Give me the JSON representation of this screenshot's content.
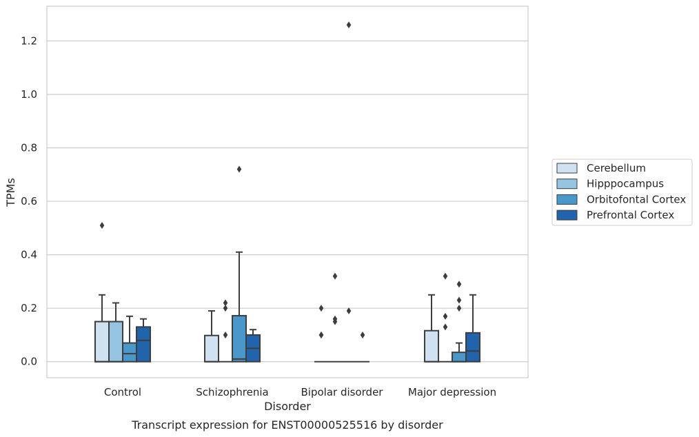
{
  "chart_data": {
    "type": "box",
    "title": "",
    "caption": "Transcript expression for ENST00000525516 by disorder",
    "xlabel": "Disorder",
    "ylabel": "TPMs",
    "categories": [
      "Control",
      "Schizophrenia",
      "Bipolar disorder",
      "Major depression"
    ],
    "ylim": [
      -0.06,
      1.33
    ],
    "yticks": [
      "0.0",
      "0.2",
      "0.4",
      "0.6",
      "0.8",
      "1.0",
      "1.2"
    ],
    "grid": true,
    "legend_position": "right",
    "series": [
      {
        "name": "Cerebellum",
        "color": "#d0e1f2",
        "boxes": [
          {
            "min": 0,
            "q1": 0,
            "median": 0,
            "q3": 0.15,
            "max": 0.25,
            "outliers": [
              0.51
            ]
          },
          {
            "min": 0,
            "q1": 0,
            "median": 0,
            "q3": 0.098,
            "max": 0.19,
            "outliers": []
          },
          {
            "min": 0,
            "q1": 0,
            "median": 0,
            "q3": 0,
            "max": 0,
            "outliers": [
              0.1,
              0.1,
              0.2
            ]
          },
          {
            "min": 0,
            "q1": 0,
            "median": 0,
            "q3": 0.116,
            "max": 0.25,
            "outliers": []
          }
        ]
      },
      {
        "name": "Hipppocampus",
        "color": "#94c4df",
        "boxes": [
          {
            "min": 0,
            "q1": 0,
            "median": 0,
            "q3": 0.15,
            "max": 0.22,
            "outliers": []
          },
          {
            "min": 0,
            "q1": 0,
            "median": 0,
            "q3": 0,
            "max": 0,
            "outliers": [
              0.1,
              0.2,
              0.22
            ]
          },
          {
            "min": 0,
            "q1": 0,
            "median": 0,
            "q3": 0,
            "max": 0,
            "outliers": [
              0.15,
              0.16,
              0.32
            ]
          },
          {
            "min": 0,
            "q1": 0,
            "median": 0,
            "q3": 0,
            "max": 0,
            "outliers": [
              0.13,
              0.17,
              0.32
            ]
          }
        ]
      },
      {
        "name": "Orbitofontal Cortex",
        "color": "#4a98c9",
        "boxes": [
          {
            "min": 0,
            "q1": 0,
            "median": 0.03,
            "q3": 0.07,
            "max": 0.17,
            "outliers": []
          },
          {
            "min": 0,
            "q1": 0,
            "median": 0.01,
            "q3": 0.172,
            "max": 0.41,
            "outliers": [
              0.72
            ]
          },
          {
            "min": 0,
            "q1": 0,
            "median": 0,
            "q3": 0,
            "max": 0,
            "outliers": [
              0.19,
              1.26
            ]
          },
          {
            "min": 0,
            "q1": 0,
            "median": 0,
            "q3": 0.035,
            "max": 0.07,
            "outliers": [
              0.2,
              0.23,
              0.29
            ]
          }
        ]
      },
      {
        "name": "Prefrontal Cortex",
        "color": "#2264ab",
        "boxes": [
          {
            "min": 0,
            "q1": 0,
            "median": 0.08,
            "q3": 0.13,
            "max": 0.16,
            "outliers": []
          },
          {
            "min": 0,
            "q1": 0,
            "median": 0.05,
            "q3": 0.1,
            "max": 0.12,
            "outliers": []
          },
          {
            "min": 0,
            "q1": 0,
            "median": 0,
            "q3": 0,
            "max": 0,
            "outliers": [
              0.1
            ]
          },
          {
            "min": 0,
            "q1": 0,
            "median": 0.04,
            "q3": 0.108,
            "max": 0.25,
            "outliers": []
          }
        ]
      }
    ]
  }
}
